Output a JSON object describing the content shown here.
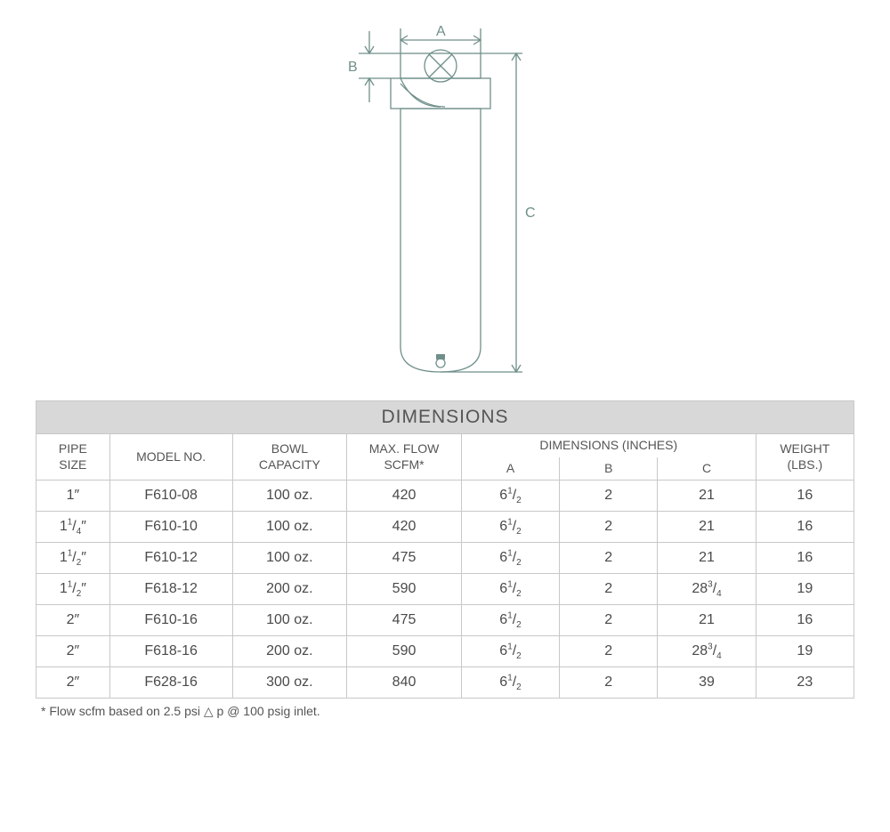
{
  "diagram": {
    "labels": {
      "A": "A",
      "B": "B",
      "C": "C"
    },
    "stroke": "#6f8f8a",
    "stroke_width": 1.3,
    "font_color": "#6f8f8a",
    "bg": "#ffffff"
  },
  "table": {
    "title": "DIMENSIONS",
    "headers": {
      "pipe": "PIPE\nSIZE",
      "model": "MODEL NO.",
      "bowl": "BOWL\nCAPACITY",
      "flow": "MAX. FLOW\nSCFM*",
      "dim_span": "DIMENSIONS (INCHES)",
      "A": "A",
      "B": "B",
      "C": "C",
      "weight": "WEIGHT\n(LBS.)"
    },
    "rows": [
      {
        "pipe": {
          "w": "1",
          "n": "",
          "d": "",
          "suf": "″"
        },
        "model": "F610-08",
        "bowl": "100 oz.",
        "flow": "420",
        "A": {
          "w": "6",
          "n": "1",
          "d": "2"
        },
        "B": "2",
        "C": {
          "w": "21",
          "n": "",
          "d": ""
        },
        "wt": "16"
      },
      {
        "pipe": {
          "w": "1",
          "n": "1",
          "d": "4",
          "suf": "″"
        },
        "model": "F610-10",
        "bowl": "100 oz.",
        "flow": "420",
        "A": {
          "w": "6",
          "n": "1",
          "d": "2"
        },
        "B": "2",
        "C": {
          "w": "21",
          "n": "",
          "d": ""
        },
        "wt": "16"
      },
      {
        "pipe": {
          "w": "1",
          "n": "1",
          "d": "2",
          "suf": "″"
        },
        "model": "F610-12",
        "bowl": "100 oz.",
        "flow": "475",
        "A": {
          "w": "6",
          "n": "1",
          "d": "2"
        },
        "B": "2",
        "C": {
          "w": "21",
          "n": "",
          "d": ""
        },
        "wt": "16"
      },
      {
        "pipe": {
          "w": "1",
          "n": "1",
          "d": "2",
          "suf": "″"
        },
        "model": "F618-12",
        "bowl": "200 oz.",
        "flow": "590",
        "A": {
          "w": "6",
          "n": "1",
          "d": "2"
        },
        "B": "2",
        "C": {
          "w": "28",
          "n": "3",
          "d": "4"
        },
        "wt": "19"
      },
      {
        "pipe": {
          "w": "2",
          "n": "",
          "d": "",
          "suf": "″"
        },
        "model": "F610-16",
        "bowl": "100 oz.",
        "flow": "475",
        "A": {
          "w": "6",
          "n": "1",
          "d": "2"
        },
        "B": "2",
        "C": {
          "w": "21",
          "n": "",
          "d": ""
        },
        "wt": "16"
      },
      {
        "pipe": {
          "w": "2",
          "n": "",
          "d": "",
          "suf": "″"
        },
        "model": "F618-16",
        "bowl": "200 oz.",
        "flow": "590",
        "A": {
          "w": "6",
          "n": "1",
          "d": "2"
        },
        "B": "2",
        "C": {
          "w": "28",
          "n": "3",
          "d": "4"
        },
        "wt": "19"
      },
      {
        "pipe": {
          "w": "2",
          "n": "",
          "d": "",
          "suf": "″"
        },
        "model": "F628-16",
        "bowl": "300 oz.",
        "flow": "840",
        "A": {
          "w": "6",
          "n": "1",
          "d": "2"
        },
        "B": "2",
        "C": {
          "w": "39",
          "n": "",
          "d": ""
        },
        "wt": "23"
      }
    ],
    "footnote": "* Flow scfm based on 2.5 psi △ p @ 100 psig inlet.",
    "colors": {
      "title_bg": "#d8d8d8",
      "border": "#c8c8c8",
      "text": "#4d4d4d"
    }
  }
}
